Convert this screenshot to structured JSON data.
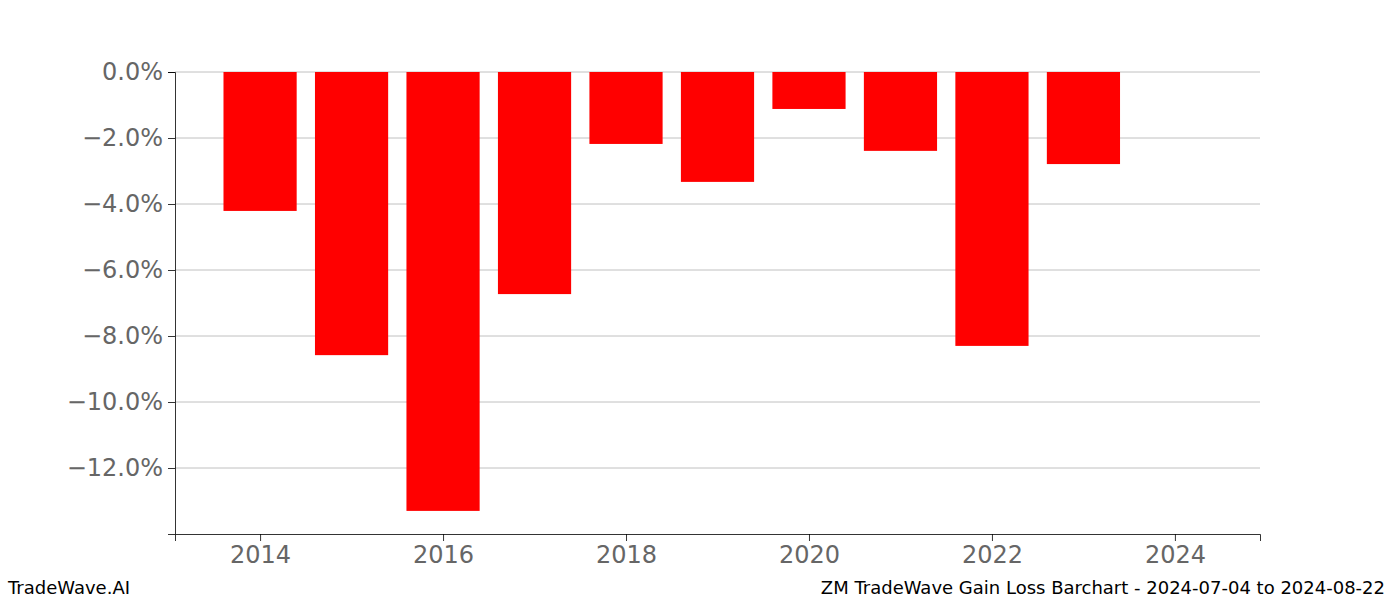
{
  "chart_data": {
    "type": "bar",
    "x": [
      2014,
      2015,
      2016,
      2017,
      2018,
      2019,
      2020,
      2021,
      2022,
      2023
    ],
    "values": [
      -4.21,
      -8.58,
      -13.3,
      -6.73,
      -2.18,
      -3.33,
      -1.12,
      -2.39,
      -8.3,
      -2.79
    ],
    "color": "#ff0000",
    "xlim": [
      2013.07,
      2024.93
    ],
    "xticks": [
      2014,
      2016,
      2018,
      2020,
      2022,
      2024
    ],
    "ylim": [
      -14,
      0
    ],
    "yticks": [
      {
        "value": 0,
        "label": "0.0%"
      },
      {
        "value": -2,
        "label": "−2.0%"
      },
      {
        "value": -4,
        "label": "−4.0%"
      },
      {
        "value": -6,
        "label": "−6.0%"
      },
      {
        "value": -8,
        "label": "−8.0%"
      },
      {
        "value": -10,
        "label": "−10.0%"
      },
      {
        "value": -12,
        "label": "−12.0%"
      }
    ],
    "grid": true,
    "annotations": [
      "TradeWave.AI",
      "ZM TradeWave Gain Loss Barchart - 2024-07-04 to 2024-08-22"
    ]
  }
}
